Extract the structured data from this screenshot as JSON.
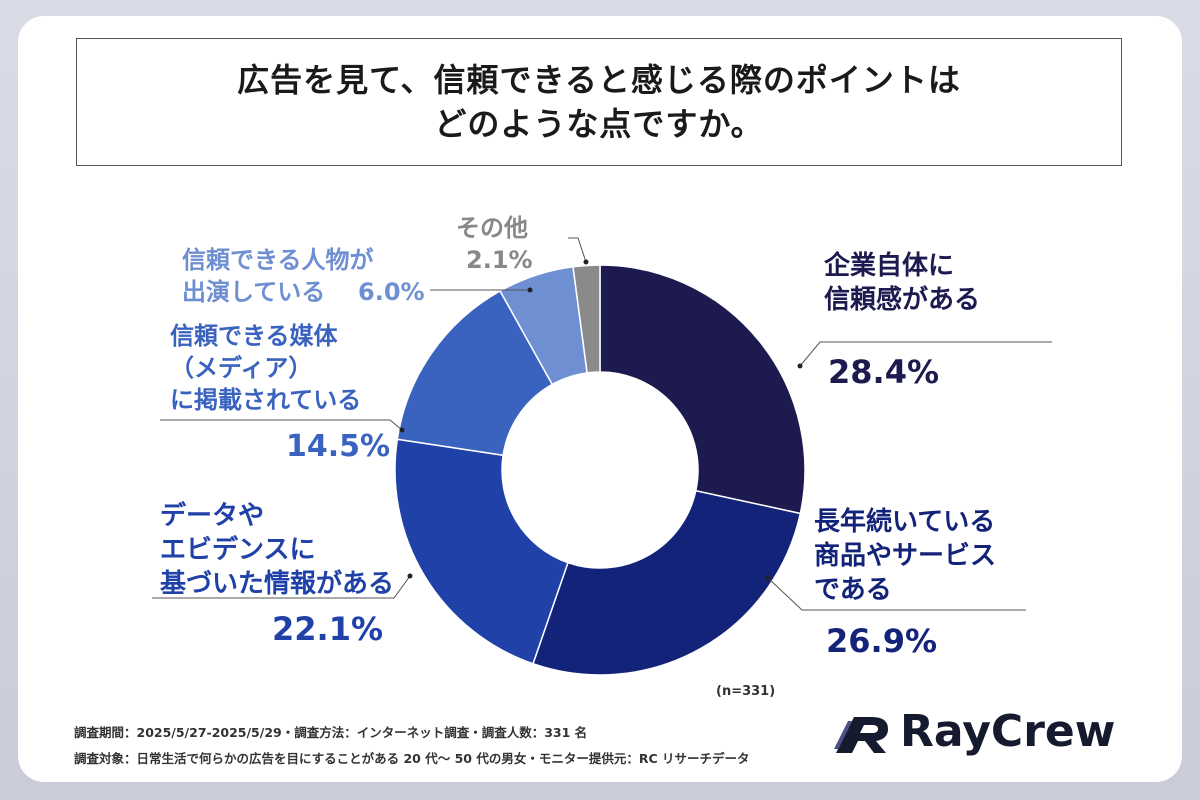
{
  "title": {
    "line1": "広告を見て、信頼できると感じる際のポイントは",
    "line2": "どのような点ですか。"
  },
  "chart_data": {
    "type": "pie",
    "donut": true,
    "n_label": "(n=331)",
    "slices": [
      {
        "label_lines": [
          "企業自体に",
          "信頼感がある"
        ],
        "value": 28.4,
        "value_label": "28.4%",
        "color": "#1c1a4e",
        "text_color": "#1c1a4e"
      },
      {
        "label_lines": [
          "長年続いている",
          "商品やサービス",
          "である"
        ],
        "value": 26.9,
        "value_label": "26.9%",
        "color": "#14237a",
        "text_color": "#14237a"
      },
      {
        "label_lines": [
          "データや",
          "エビデンスに",
          "基づいた情報がある"
        ],
        "value": 22.1,
        "value_label": "22.1%",
        "color": "#1f41a8",
        "text_color": "#1f41a8"
      },
      {
        "label_lines": [
          "信頼できる媒体",
          "（メディア）",
          "に掲載されている"
        ],
        "value": 14.5,
        "value_label": "14.5%",
        "color": "#3a63c0",
        "text_color": "#3a63c0"
      },
      {
        "label_lines": [
          "信頼できる人物が",
          "出演している"
        ],
        "value": 6.0,
        "value_label": "6.0%",
        "color": "#6f8fd3",
        "text_color": "#6f8fd3"
      },
      {
        "label_lines": [
          "その他"
        ],
        "value": 2.1,
        "value_label": "2.1%",
        "color": "#8a8a8a",
        "text_color": "#888888"
      }
    ]
  },
  "footer": {
    "line1": "調査期間：2025/5/27-2025/5/29・調査方法：インターネット調査・調査人数：331 名",
    "line2": "調査対象：日常生活で何らかの広告を目にすることがある 20 代〜 50 代の男女・モニター提供元：RC リサーチデータ"
  },
  "logo": {
    "text": "RayCrew",
    "icon": "raycrew-r-logo-icon"
  }
}
